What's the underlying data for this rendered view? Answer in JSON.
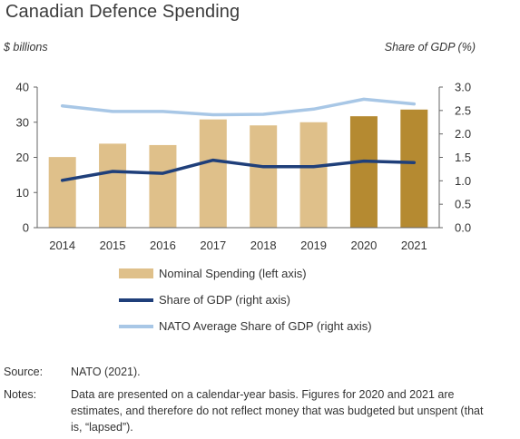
{
  "title": "Canadian Defence Spending",
  "left_axis_label": "$ billions",
  "right_axis_label": "Share of GDP (%)",
  "chart_data": {
    "type": "bar",
    "categories": [
      "2014",
      "2015",
      "2016",
      "2017",
      "2018",
      "2019",
      "2020",
      "2021"
    ],
    "left_ticks": [
      "0",
      "10",
      "20",
      "30",
      "40"
    ],
    "right_ticks": [
      "0.0",
      "0.5",
      "1.0",
      "1.5",
      "2.0",
      "2.5",
      "3.0"
    ],
    "ylim_left": [
      0,
      40
    ],
    "ylim_right": [
      0,
      3.0
    ],
    "series": [
      {
        "name": "Nominal Spending (left axis)",
        "type": "bar",
        "axis": "left",
        "values": [
          20.1,
          23.9,
          23.5,
          30.8,
          29.1,
          30.0,
          31.7,
          33.6
        ],
        "colors": [
          "#dfc08a",
          "#dfc08a",
          "#dfc08a",
          "#dfc08a",
          "#dfc08a",
          "#dfc08a",
          "#b58a31",
          "#b58a31"
        ]
      },
      {
        "name": "Share of GDP (right axis)",
        "type": "line",
        "axis": "right",
        "values": [
          1.01,
          1.2,
          1.16,
          1.44,
          1.3,
          1.3,
          1.42,
          1.39
        ],
        "color": "#1f3f7a"
      },
      {
        "name": "NATO Average Share of GDP (right axis)",
        "type": "line",
        "axis": "right",
        "values": [
          2.6,
          2.48,
          2.48,
          2.41,
          2.42,
          2.53,
          2.74,
          2.64
        ],
        "color": "#a8c7e6"
      }
    ],
    "grid": false
  },
  "source_label": "Source:",
  "source_text": "NATO (2021).",
  "notes_label": "Notes:",
  "notes_text": "Data are presented on a calendar-year basis.  Figures for 2020 and 2021 are estimates, and therefore do not reflect money that was budgeted but unspent (that is, “lapsed”)."
}
